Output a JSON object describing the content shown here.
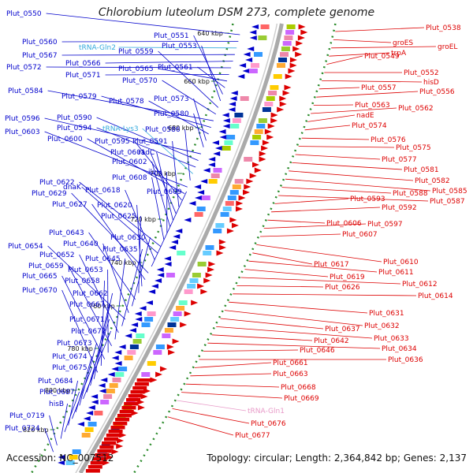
{
  "title": "Chlorobium luteolum DSM 273, complete genome",
  "accession": "Accession: NC_007512",
  "summary": "Topology: circular; Length: 2,364,842 bp; Genes: 2,137",
  "colors": {
    "reverse_strand": "#0000cc",
    "forward_strand": "#dd0000",
    "trna_reverse": "#33aadd",
    "trna_forward": "#e89ac8",
    "axis": "#aaaaaa",
    "tick": "#2a8a2a"
  },
  "ticks": [
    "640 kbp",
    "660 kbp",
    "680 kbp",
    "700 kbp",
    "720 kbp",
    "740 kbp",
    "760 kbp",
    "780 kbp",
    "800 kbp",
    "820 kbp"
  ],
  "left_labels": [
    "Plut_0550",
    "Plut_0560",
    "tRNA-Gln2",
    "Plut_0567",
    "Plut_0566",
    "Plut_0572",
    "Plut_0571",
    "Plut_0565",
    "Plut_0561",
    "Plut_0551",
    "Plut_0553",
    "Plut_0559",
    "Plut_0570",
    "Plut_0584",
    "Plut_0579",
    "Plut_0578",
    "Plut_0573",
    "Plut_0580",
    "Plut_0596",
    "Plut_0590",
    "Plut_0594",
    "tRNA-Lys3",
    "Plut_0586",
    "Plut_0603",
    "Plut_0600",
    "Plut_0595",
    "Plut_0591",
    "Plut_0601",
    "radC",
    "Plut_0602",
    "ilvH",
    "Plut_0608",
    "Plut_0622",
    "dnaK",
    "Plut_0618",
    "Plut_0609",
    "Plut_0629",
    "Plut_0627",
    "Plut_0620",
    "Plut_0625",
    "Plut_0643",
    "Plut_0630",
    "Plut_0640",
    "Plut_0654",
    "Plut_0635",
    "Plut_0652",
    "Plut_0645",
    "Plut_0659",
    "Plut_0653",
    "Plut_0665",
    "Plut_0658",
    "Plut_0670",
    "Plut_0662",
    "Plut_0667",
    "Plut_0671",
    "Plut_0672",
    "Plut_0673",
    "Plut_0674",
    "Plut_0675",
    "Plut_0684",
    "Plut_0687",
    "hisB",
    "Plut_0719",
    "Plut_0724"
  ],
  "right_labels": [
    "Plut_0538",
    "groES",
    "groEL",
    "trpA",
    "Plut_0549",
    "Plut_0552",
    "hisD",
    "Plut_0557",
    "Plut_0556",
    "Plut_0563",
    "Plut_0562",
    "nadE",
    "Plut_0574",
    "Plut_0576",
    "Plut_0575",
    "Plut_0577",
    "Plut_0581",
    "Plut_0582",
    "Plut_0585",
    "Plut_0588",
    "Plut_0587",
    "Plut_0593",
    "Plut_0592",
    "Plut_0606",
    "Plut_0597",
    "Plut_0607",
    "Plut_0610",
    "Plut_0617",
    "Plut_0611",
    "Plut_0619",
    "Plut_0612",
    "Plut_0626",
    "Plut_0614",
    "Plut_0631",
    "Plut_0632",
    "Plut_0637",
    "Plut_0633",
    "Plut_0642",
    "Plut_0634",
    "Plut_0646",
    "Plut_0636",
    "Plut_0661",
    "Plut_0663",
    "Plut_0668",
    "Plut_0669",
    "tRNA-Gln1",
    "Plut_0676",
    "Plut_0677"
  ]
}
